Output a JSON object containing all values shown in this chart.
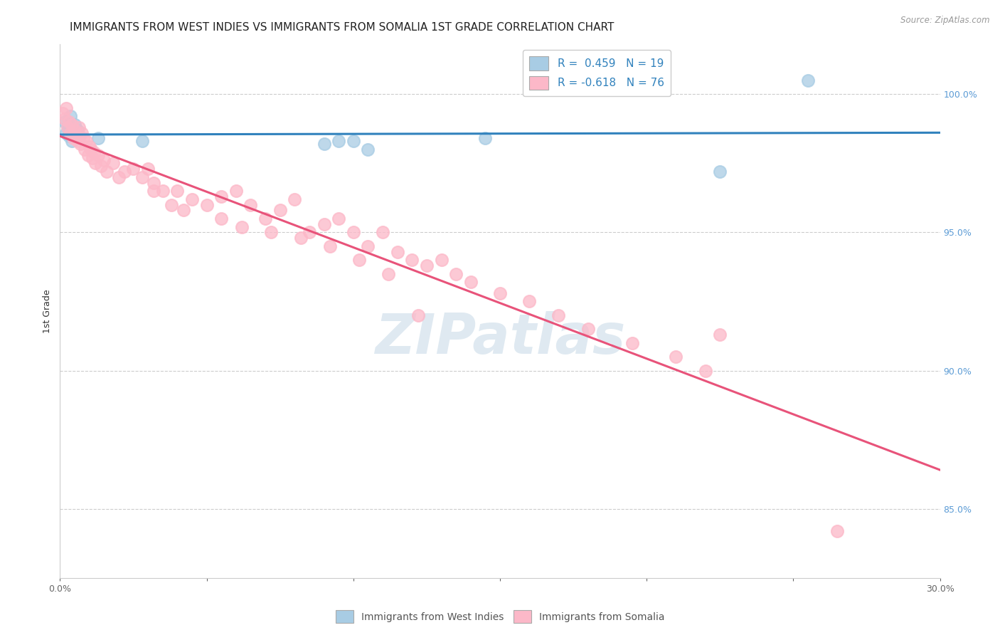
{
  "title": "IMMIGRANTS FROM WEST INDIES VS IMMIGRANTS FROM SOMALIA 1ST GRADE CORRELATION CHART",
  "source": "Source: ZipAtlas.com",
  "ylabel_left": "1st Grade",
  "x_min": 0.0,
  "x_max": 30.0,
  "y_min": 82.5,
  "y_max": 101.8,
  "y_ticks_right": [
    85.0,
    90.0,
    95.0,
    100.0
  ],
  "x_tick_positions": [
    0,
    5,
    10,
    15,
    20,
    25,
    30
  ],
  "x_tick_labels": [
    "0.0%",
    "",
    "",
    "",
    "",
    "",
    "30.0%"
  ],
  "legend_label_blue": "R =  0.459   N = 19",
  "legend_label_pink": "R = -0.618   N = 76",
  "legend_label_blue_short": "Immigrants from West Indies",
  "legend_label_pink_short": "Immigrants from Somalia",
  "watermark": "ZIPatlas",
  "blue_color": "#a8cce4",
  "blue_line_color": "#3182bd",
  "pink_color": "#fcb8c8",
  "pink_line_color": "#e8537a",
  "blue_scatter_x": [
    0.15,
    0.2,
    0.25,
    0.3,
    0.35,
    0.4,
    0.5,
    0.55,
    0.6,
    0.65,
    1.3,
    2.8,
    9.0,
    9.5,
    10.0,
    10.5,
    14.5,
    25.5,
    22.5
  ],
  "blue_scatter_y": [
    99.0,
    98.6,
    98.8,
    98.5,
    99.2,
    98.3,
    98.9,
    98.4,
    98.7,
    98.5,
    98.4,
    98.3,
    98.2,
    98.3,
    98.3,
    98.0,
    98.4,
    100.5,
    97.2
  ],
  "pink_scatter_x": [
    0.1,
    0.15,
    0.2,
    0.25,
    0.3,
    0.35,
    0.4,
    0.45,
    0.5,
    0.55,
    0.6,
    0.65,
    0.7,
    0.75,
    0.8,
    0.85,
    0.9,
    0.95,
    1.0,
    1.05,
    1.1,
    1.15,
    1.2,
    1.3,
    1.4,
    1.5,
    1.6,
    1.8,
    2.0,
    2.2,
    2.5,
    2.8,
    3.0,
    3.2,
    3.5,
    4.0,
    4.5,
    5.0,
    5.5,
    6.0,
    6.5,
    7.0,
    7.5,
    8.0,
    8.5,
    9.0,
    9.5,
    10.0,
    10.5,
    11.0,
    11.5,
    12.0,
    12.5,
    13.0,
    13.5,
    14.0,
    15.0,
    16.0,
    17.0,
    18.0,
    19.5,
    21.0,
    22.0,
    22.5,
    3.2,
    3.8,
    4.2,
    5.5,
    6.2,
    7.2,
    8.2,
    9.2,
    10.2,
    11.2,
    12.2,
    26.5
  ],
  "pink_scatter_y": [
    99.3,
    99.1,
    99.5,
    98.8,
    99.0,
    98.6,
    98.9,
    98.4,
    98.7,
    98.5,
    98.3,
    98.8,
    98.2,
    98.6,
    98.4,
    98.0,
    98.3,
    97.8,
    98.1,
    98.0,
    97.7,
    97.9,
    97.5,
    97.8,
    97.4,
    97.6,
    97.2,
    97.5,
    97.0,
    97.2,
    97.3,
    97.0,
    97.3,
    96.8,
    96.5,
    96.5,
    96.2,
    96.0,
    96.3,
    96.5,
    96.0,
    95.5,
    95.8,
    96.2,
    95.0,
    95.3,
    95.5,
    95.0,
    94.5,
    95.0,
    94.3,
    94.0,
    93.8,
    94.0,
    93.5,
    93.2,
    92.8,
    92.5,
    92.0,
    91.5,
    91.0,
    90.5,
    90.0,
    91.3,
    96.5,
    96.0,
    95.8,
    95.5,
    95.2,
    95.0,
    94.8,
    94.5,
    94.0,
    93.5,
    92.0,
    84.2
  ],
  "grid_color": "#cccccc",
  "background_color": "#ffffff",
  "title_fontsize": 11,
  "axis_label_fontsize": 9,
  "tick_fontsize": 9,
  "right_tick_color": "#5b9bd5"
}
